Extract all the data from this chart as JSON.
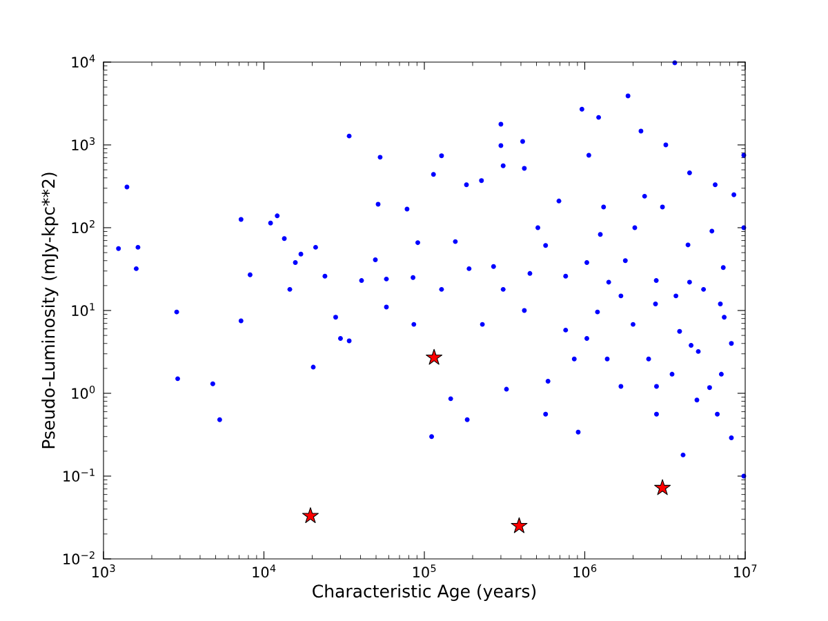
{
  "chart_data": {
    "type": "scatter",
    "xlabel": "Characteristic Age (years)",
    "ylabel": "Pseudo-Luminosity (mJy-kpc**2)",
    "log": "xy",
    "grid": false,
    "xlim": [
      1000,
      10000000
    ],
    "ylim": [
      0.01,
      10000
    ],
    "xticks": [
      {
        "value": 1000,
        "label": "10$^{3}$"
      },
      {
        "value": 10000,
        "label": "10$^{4}$"
      },
      {
        "value": 100000,
        "label": "10$^{5}$"
      },
      {
        "value": 1000000,
        "label": "10$^{6}$"
      },
      {
        "value": 10000000,
        "label": "10$^{7}$"
      }
    ],
    "yticks": [
      {
        "value": 0.01,
        "label": "10$^{−2}$"
      },
      {
        "value": 0.1,
        "label": "10$^{−1}$"
      },
      {
        "value": 1,
        "label": "10$^{0}$"
      },
      {
        "value": 10,
        "label": "10$^{1}$"
      },
      {
        "value": 100,
        "label": "10$^{2}$"
      },
      {
        "value": 1000,
        "label": "10$^{3}$"
      },
      {
        "value": 10000,
        "label": "10$^{4}$"
      }
    ],
    "series": [
      {
        "color": "#0000ff",
        "marker": "circle",
        "x": [
          1240,
          1400,
          1600,
          1640,
          2860,
          2900,
          4800,
          5300,
          7200,
          7200,
          8200,
          11000,
          12100,
          13400,
          15700,
          17000,
          20300,
          21000,
          28000,
          30000,
          34000,
          34000,
          40600,
          49500,
          51500,
          53000,
          78000,
          85000,
          91000,
          114000,
          111000,
          128000,
          146000,
          183000,
          185000,
          190000,
          227000,
          270000,
          300000,
          300000,
          310000,
          325000,
          410000,
          420000,
          455000,
          570000,
          590000,
          570000,
          690000,
          860000,
          910000,
          960000,
          1060000,
          1310000,
          1220000,
          1410000,
          1860000,
          2000000,
          2240000,
          2360000,
          2790000,
          3200000,
          3500000,
          3640000,
          4400000,
          4500000,
          4100000,
          5100000,
          6200000,
          7000000,
          7300000,
          8200000,
          9800000,
          9800000,
          6000000,
          3900000,
          1790000,
          1200000,
          760000,
          2800000,
          1380000,
          8200000,
          8500000,
          7100000,
          4600000,
          6500000,
          230000,
          310000,
          420000,
          760000,
          1030000,
          1680000,
          2760000,
          3700000,
          5500000,
          7400000,
          2500000,
          1250000,
          510000,
          128000,
          86000,
          58000,
          24000,
          9800000,
          3050000,
          2050000,
          4500000,
          2800000,
          6700000,
          5000000,
          1680000,
          1030000,
          156000,
          58000,
          14500
        ],
        "values": [
          56,
          310,
          32,
          58,
          9.6,
          1.5,
          1.3,
          0.48,
          126,
          7.5,
          27,
          114,
          139,
          74,
          38,
          48,
          2.07,
          58,
          8.3,
          4.6,
          1280,
          4.3,
          23,
          41,
          192,
          710,
          168,
          25,
          66,
          440,
          0.3,
          740,
          0.86,
          330,
          0.48,
          32,
          370,
          34,
          1780,
          980,
          560,
          1.12,
          1100,
          520,
          28,
          61,
          1.4,
          0.56,
          210,
          2.6,
          0.34,
          2700,
          750,
          178,
          2150,
          22,
          3900,
          6.8,
          1470,
          240,
          23,
          1000,
          1.7,
          9800,
          62,
          22,
          0.18,
          3.2,
          91,
          12,
          33,
          0.29,
          750,
          0.1,
          1.17,
          5.6,
          40,
          9.6,
          5.8,
          1.21,
          2.6,
          4.0,
          250,
          1.7,
          3.8,
          330,
          6.8,
          18,
          10,
          26,
          38,
          15,
          12,
          15,
          18,
          8.3,
          2.6,
          83,
          100,
          18,
          6.8,
          11,
          26,
          100,
          178,
          100,
          460,
          0.56,
          0.56,
          0.83,
          1.21,
          4.6,
          68,
          24,
          18
        ]
      },
      {
        "color": "#ff0000",
        "marker": "star",
        "x": [
          19500,
          115000,
          390000,
          3050000
        ],
        "values": [
          0.033,
          2.7,
          0.025,
          0.072
        ]
      }
    ]
  }
}
